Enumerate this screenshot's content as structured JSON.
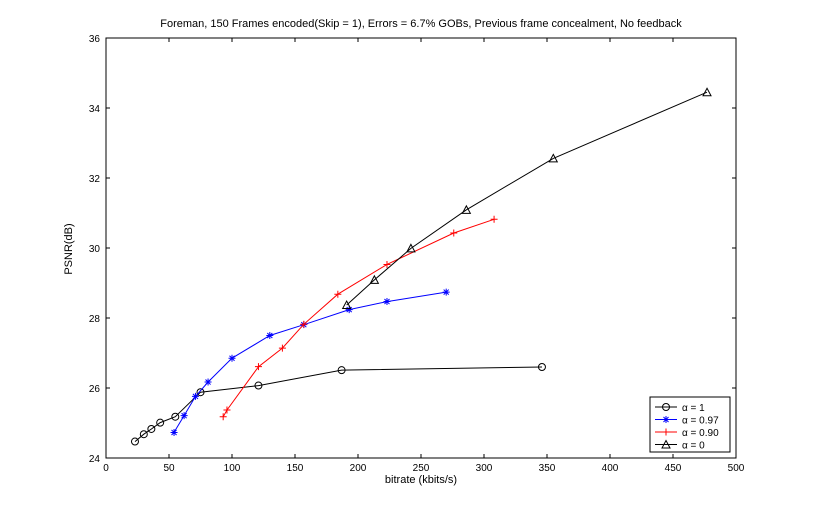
{
  "chart_data": {
    "type": "line",
    "title": "Foreman, 150 Frames encoded(Skip = 1), Errors = 6.7% GOBs, Previous frame concealment, No feedback",
    "xlabel": "bitrate (kbits/s)",
    "ylabel": "PSNR(dB)",
    "xlim": [
      0,
      500
    ],
    "ylim": [
      24,
      36
    ],
    "xticks": [
      0,
      50,
      100,
      150,
      200,
      250,
      300,
      350,
      400,
      450,
      500
    ],
    "yticks": [
      24,
      26,
      28,
      30,
      32,
      34,
      36
    ],
    "grid": false,
    "legend_position": "bottom-right",
    "series": [
      {
        "name": "α = 1",
        "color": "#000000",
        "marker": "circle",
        "x": [
          23,
          30,
          36,
          43,
          55,
          75,
          121,
          187,
          346
        ],
        "y": [
          24.47,
          24.68,
          24.83,
          25.01,
          25.18,
          25.88,
          26.07,
          26.51,
          26.6
        ]
      },
      {
        "name": "α = 0.97",
        "color": "#0000ff",
        "marker": "star",
        "x": [
          54,
          62,
          71,
          81,
          100,
          130,
          157,
          193,
          223,
          270
        ],
        "y": [
          24.73,
          25.21,
          25.76,
          26.17,
          26.85,
          27.5,
          27.81,
          28.24,
          28.47,
          28.74
        ]
      },
      {
        "name": "α = 0.90",
        "color": "#ff0000",
        "marker": "plus",
        "x": [
          93,
          96,
          121,
          140,
          157,
          184,
          223,
          276,
          308
        ],
        "y": [
          25.18,
          25.37,
          26.61,
          27.14,
          27.82,
          28.68,
          29.53,
          30.43,
          30.82
        ]
      },
      {
        "name": "α = 0",
        "color": "#000000",
        "marker": "triangle",
        "x": [
          191,
          213,
          242,
          286,
          355,
          477
        ],
        "y": [
          28.37,
          29.09,
          29.99,
          31.09,
          32.56,
          34.45
        ]
      }
    ]
  }
}
